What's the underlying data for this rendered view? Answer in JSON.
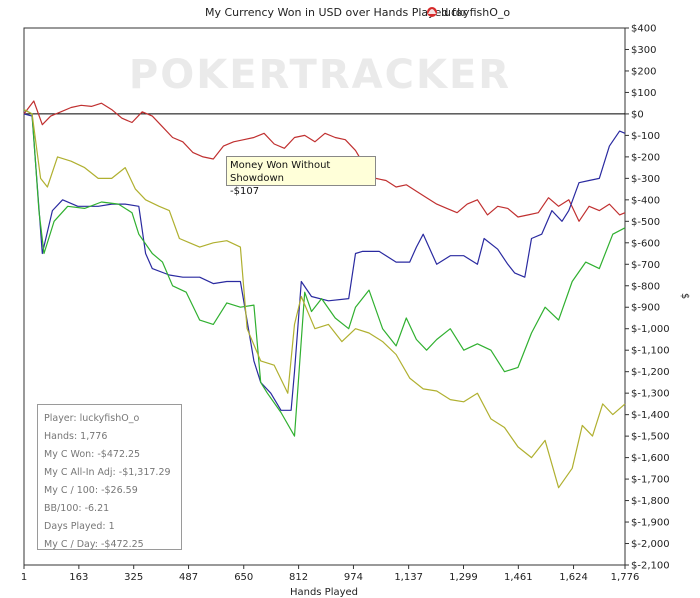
{
  "title": "My Currency Won in USD over Hands Played for",
  "player_name": "luckyfishO_o",
  "logo_text": "POKERTRACKER",
  "tooltip": {
    "label": "Money Won Without Showdown",
    "value": "-$107"
  },
  "stats": [
    "Player: luckyfishO_o",
    "Hands: 1,776",
    "My C Won: -$472.25",
    "My C All-In Adj: -$1,317.29",
    "My C / 100: -$26.59",
    "BB/100: -6.21",
    "Days Played: 1",
    "My C / Day: -$472.25"
  ],
  "chart_data": {
    "type": "line",
    "title": "My Currency Won in USD over Hands Played for luckyfishO_o",
    "xlabel": "Hands Played",
    "ylabel": "$",
    "xlim": [
      1,
      1776
    ],
    "ylim": [
      -2100,
      400
    ],
    "x_ticks": [
      1,
      163,
      325,
      487,
      650,
      812,
      974,
      1137,
      1299,
      1461,
      1624,
      1776
    ],
    "x_tick_labels": [
      "1",
      "163",
      "325",
      "487",
      "650",
      "812",
      "974",
      "1,137",
      "1,299",
      "1,461",
      "1,624",
      "1,776"
    ],
    "y_ticks": [
      400,
      300,
      200,
      100,
      0,
      -100,
      -200,
      -300,
      -400,
      -500,
      -600,
      -700,
      -800,
      -900,
      -1000,
      -1100,
      -1200,
      -1300,
      -1400,
      -1500,
      -1600,
      -1700,
      -1800,
      -1900,
      -2000,
      -2100
    ],
    "y_tick_labels": [
      "$400",
      "$300",
      "$200",
      "$100",
      "$0",
      "$-100",
      "$-200",
      "$-300",
      "$-400",
      "$-500",
      "$-600",
      "$-700",
      "$-800",
      "$-900",
      "$-1,000",
      "$-1,100",
      "$-1,200",
      "$-1,300",
      "$-1,400",
      "$-1,500",
      "$-1,600",
      "$-1,700",
      "$-1,800",
      "$-1,900",
      "$-2,000",
      "$-2,100"
    ],
    "zero_line": 0,
    "grid": false,
    "series": [
      {
        "color": "#c03030",
        "x": [
          1,
          30,
          55,
          80,
          110,
          140,
          170,
          200,
          230,
          260,
          290,
          320,
          350,
          380,
          410,
          440,
          470,
          500,
          530,
          560,
          590,
          620,
          650,
          680,
          710,
          740,
          770,
          800,
          830,
          860,
          890,
          920,
          950,
          980,
          1010,
          1040,
          1070,
          1100,
          1130,
          1160,
          1190,
          1220,
          1250,
          1280,
          1310,
          1340,
          1370,
          1400,
          1430,
          1460,
          1490,
          1520,
          1550,
          1580,
          1610,
          1640,
          1670,
          1700,
          1730,
          1760,
          1776
        ],
        "y": [
          0,
          60,
          -50,
          -10,
          10,
          30,
          40,
          35,
          50,
          20,
          -20,
          -40,
          10,
          -10,
          -60,
          -110,
          -130,
          -180,
          -200,
          -210,
          -150,
          -130,
          -120,
          -110,
          -90,
          -140,
          -160,
          -110,
          -100,
          -130,
          -90,
          -110,
          -120,
          -170,
          -250,
          -300,
          -310,
          -340,
          -330,
          -360,
          -390,
          -420,
          -440,
          -460,
          -420,
          -400,
          -470,
          -430,
          -440,
          -480,
          -470,
          -460,
          -390,
          -430,
          -400,
          -500,
          -430,
          -450,
          -420,
          -470,
          -460
        ]
      },
      {
        "color": "#2a2aa0",
        "x": [
          1,
          25,
          55,
          85,
          115,
          160,
          220,
          260,
          300,
          340,
          360,
          380,
          430,
          470,
          520,
          560,
          600,
          640,
          680,
          700,
          730,
          760,
          790,
          800,
          820,
          850,
          900,
          960,
          980,
          1000,
          1050,
          1100,
          1140,
          1160,
          1180,
          1220,
          1260,
          1300,
          1340,
          1360,
          1400,
          1430,
          1450,
          1480,
          1500,
          1530,
          1560,
          1590,
          1610,
          1640,
          1670,
          1700,
          1730,
          1760,
          1776
        ],
        "y": [
          0,
          -10,
          -650,
          -450,
          -400,
          -430,
          -430,
          -420,
          -420,
          -430,
          -650,
          -720,
          -750,
          -760,
          -760,
          -790,
          -780,
          -780,
          -1150,
          -1250,
          -1300,
          -1380,
          -1380,
          -1200,
          -780,
          -850,
          -870,
          -860,
          -650,
          -640,
          -640,
          -690,
          -690,
          -620,
          -560,
          -700,
          -660,
          -660,
          -700,
          -580,
          -630,
          -700,
          -740,
          -760,
          -580,
          -560,
          -450,
          -500,
          -450,
          -320,
          -310,
          -300,
          -150,
          -80,
          -90
        ]
      },
      {
        "color": "#30b030",
        "x": [
          1,
          25,
          45,
          60,
          90,
          130,
          180,
          230,
          280,
          320,
          340,
          380,
          410,
          440,
          480,
          520,
          560,
          600,
          640,
          680,
          700,
          720,
          760,
          800,
          830,
          850,
          880,
          920,
          960,
          980,
          1020,
          1060,
          1100,
          1130,
          1160,
          1190,
          1220,
          1260,
          1300,
          1340,
          1380,
          1420,
          1460,
          1500,
          1540,
          1580,
          1620,
          1660,
          1700,
          1740,
          1776
        ],
        "y": [
          20,
          0,
          -450,
          -650,
          -500,
          -430,
          -440,
          -410,
          -420,
          -460,
          -560,
          -650,
          -690,
          -800,
          -830,
          -960,
          -980,
          -880,
          -900,
          -890,
          -1250,
          -1300,
          -1390,
          -1500,
          -830,
          -920,
          -860,
          -950,
          -1000,
          -900,
          -820,
          -1000,
          -1080,
          -950,
          -1050,
          -1100,
          -1050,
          -1000,
          -1100,
          -1070,
          -1100,
          -1200,
          -1180,
          -1020,
          -900,
          -960,
          -780,
          -690,
          -720,
          -560,
          -530
        ]
      },
      {
        "color": "#b0b030",
        "x": [
          1,
          25,
          50,
          70,
          100,
          140,
          180,
          220,
          260,
          300,
          330,
          360,
          400,
          430,
          460,
          490,
          520,
          560,
          600,
          640,
          660,
          700,
          740,
          780,
          800,
          820,
          860,
          900,
          940,
          980,
          1020,
          1060,
          1100,
          1140,
          1180,
          1220,
          1260,
          1300,
          1340,
          1380,
          1420,
          1460,
          1500,
          1540,
          1580,
          1620,
          1650,
          1680,
          1710,
          1740,
          1776
        ],
        "y": [
          20,
          0,
          -300,
          -340,
          -200,
          -220,
          -250,
          -300,
          -300,
          -250,
          -350,
          -400,
          -430,
          -450,
          -580,
          -600,
          -620,
          -600,
          -590,
          -620,
          -1000,
          -1150,
          -1170,
          -1300,
          -980,
          -850,
          -1000,
          -980,
          -1060,
          -1000,
          -1020,
          -1060,
          -1120,
          -1230,
          -1280,
          -1290,
          -1330,
          -1340,
          -1300,
          -1420,
          -1460,
          -1550,
          -1600,
          -1520,
          -1740,
          -1650,
          -1450,
          -1500,
          -1350,
          -1400,
          -1350
        ]
      }
    ]
  }
}
